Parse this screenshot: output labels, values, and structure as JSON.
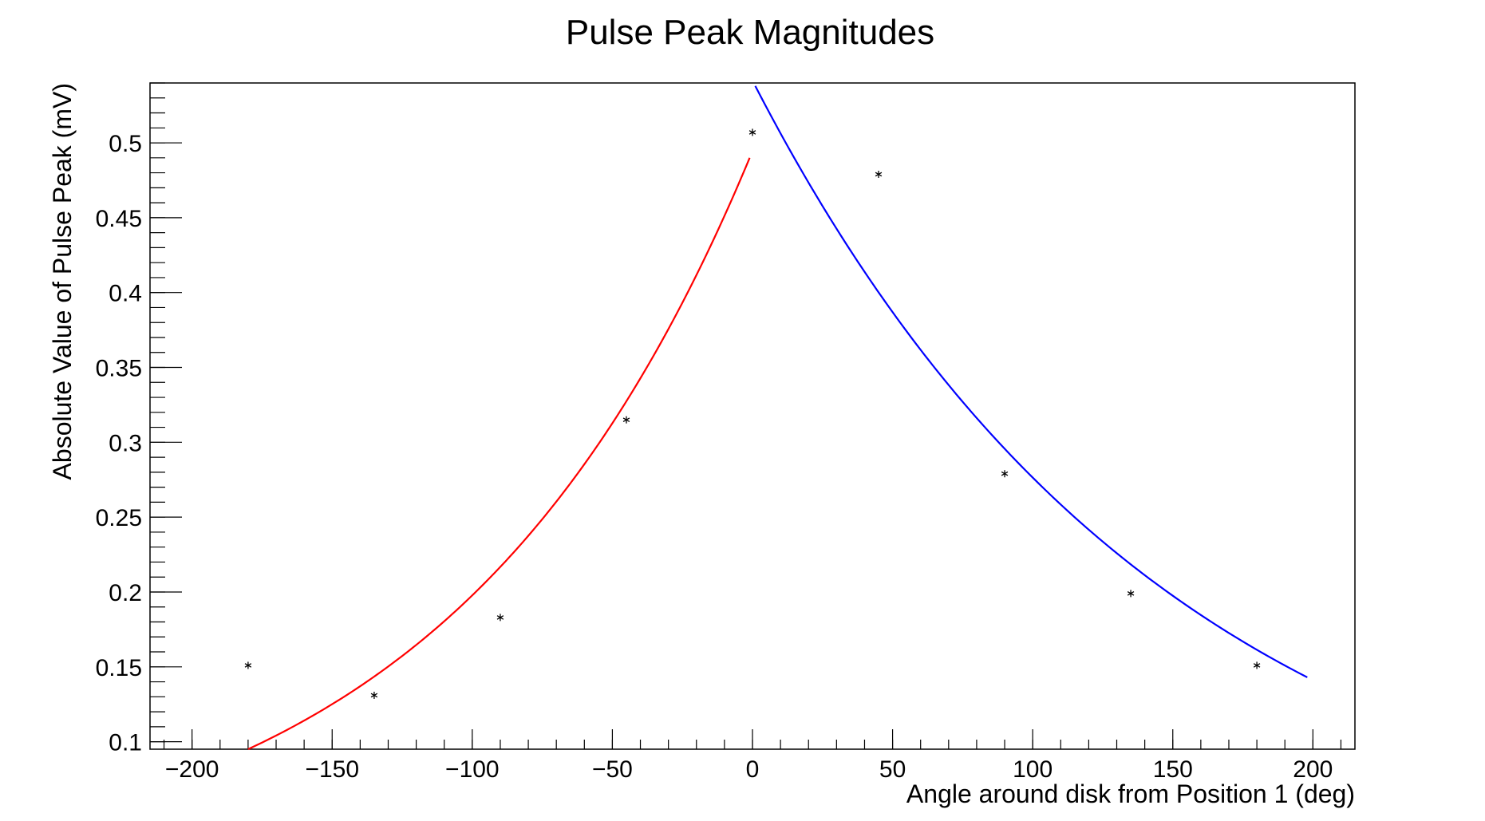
{
  "chart_data": {
    "type": "scatter",
    "title": "Pulse Peak Magnitudes",
    "xlabel": "Angle around disk from Position 1 (deg)",
    "ylabel": "Absolute Value of Pulse Peak (mV)",
    "xlim": [
      -215,
      215
    ],
    "ylim": [
      0.095,
      0.54
    ],
    "x_ticks": [
      -200,
      -150,
      -100,
      -50,
      0,
      50,
      100,
      150,
      200
    ],
    "x_tick_labels": [
      "−200",
      "−150",
      "−100",
      "−50",
      "0",
      "50",
      "100",
      "150",
      "200"
    ],
    "y_ticks": [
      0.1,
      0.15,
      0.2,
      0.25,
      0.3,
      0.35,
      0.4,
      0.45,
      0.5
    ],
    "y_tick_labels": [
      "0.1",
      "0.15",
      "0.2",
      "0.25",
      "0.3",
      "0.35",
      "0.4",
      "0.45",
      "0.5"
    ],
    "grid": false,
    "legend": "none",
    "points": {
      "marker": "asterisk",
      "color": "#000000",
      "x": [
        -180,
        -135,
        -90,
        -45,
        0,
        45,
        90,
        135,
        180
      ],
      "y": [
        0.151,
        0.131,
        0.183,
        0.315,
        0.507,
        0.479,
        0.279,
        0.199,
        0.151
      ]
    },
    "series": [
      {
        "type": "fit-curve",
        "color": "#ff0000",
        "model": "exponential",
        "x_range": [
          -180,
          -1
        ],
        "x": [
          -180,
          -135,
          -90,
          -45,
          -1
        ],
        "y": [
          0.095,
          0.14,
          0.213,
          0.325,
          0.49
        ]
      },
      {
        "type": "fit-curve",
        "color": "#0000ff",
        "model": "exponential",
        "x_range": [
          1,
          198
        ],
        "x": [
          1,
          50,
          100,
          150,
          198
        ],
        "y": [
          0.538,
          0.4,
          0.3,
          0.2,
          0.143
        ]
      }
    ]
  }
}
